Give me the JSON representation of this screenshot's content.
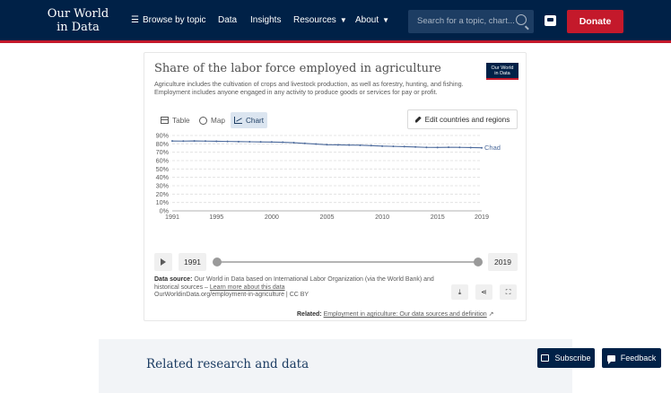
{
  "header": {
    "logo_line1": "Our World",
    "logo_line2": "in Data",
    "nav": {
      "browse": "Browse by topic",
      "data": "Data",
      "insights": "Insights",
      "resources": "Resources",
      "about": "About"
    },
    "search_placeholder": "Search for a topic, chart...",
    "donate": "Donate",
    "colors": {
      "navy": "#002147",
      "accent": "#c4192b"
    }
  },
  "card": {
    "title": "Share of the labor force employed in agriculture",
    "mini_logo_line1": "Our World",
    "mini_logo_line2": "in Data",
    "subtitle": "Agriculture includes the cultivation of crops and livestock production, as well as forestry, hunting, and fishing. Employment includes anyone engaged in any activity to produce goods or services for pay or profit.",
    "tabs": {
      "table": "Table",
      "map": "Map",
      "chart": "Chart",
      "active": "Chart"
    },
    "edit_label": "Edit countries and regions",
    "timeline": {
      "start": "1991",
      "end": "2019"
    },
    "source_label": "Data source:",
    "source_text": "Our World in Data based on International Labor Organization (via the World Bank) and historical sources –",
    "source_link": "Learn more about this data",
    "url_line": "OurWorldinData.org/employment-in-agriculture | CC BY",
    "related_label": "Related:",
    "related_link": "Employment in agriculture: Our data sources and definition"
  },
  "research_title": "Related research and data",
  "floating": {
    "subscribe": "Subscribe",
    "feedback": "Feedback"
  },
  "chart_data": {
    "type": "line",
    "title": "Share of the labor force employed in agriculture",
    "xlabel": "",
    "ylabel": "",
    "ylim": [
      0,
      90
    ],
    "y_ticks": [
      "0%",
      "10%",
      "20%",
      "30%",
      "40%",
      "50%",
      "60%",
      "70%",
      "80%",
      "90%"
    ],
    "x_ticks": [
      "1991",
      "1995",
      "2000",
      "2005",
      "2010",
      "2015",
      "2019"
    ],
    "grid": true,
    "series": [
      {
        "name": "Chad",
        "color": "#4c6a9c",
        "x": [
          1991,
          1992,
          1993,
          1994,
          1995,
          1996,
          1997,
          1998,
          1999,
          2000,
          2001,
          2002,
          2003,
          2004,
          2005,
          2006,
          2007,
          2008,
          2009,
          2010,
          2011,
          2012,
          2013,
          2014,
          2015,
          2016,
          2017,
          2018,
          2019
        ],
        "y": [
          83.4,
          83.3,
          83.5,
          83.3,
          83.1,
          82.9,
          82.7,
          82.5,
          82.3,
          82.2,
          81.9,
          81.4,
          80.6,
          79.8,
          79.0,
          78.8,
          78.6,
          78.4,
          77.9,
          77.3,
          77.0,
          76.7,
          76.3,
          75.8,
          75.7,
          75.9,
          75.8,
          75.6,
          75.3
        ]
      }
    ]
  }
}
